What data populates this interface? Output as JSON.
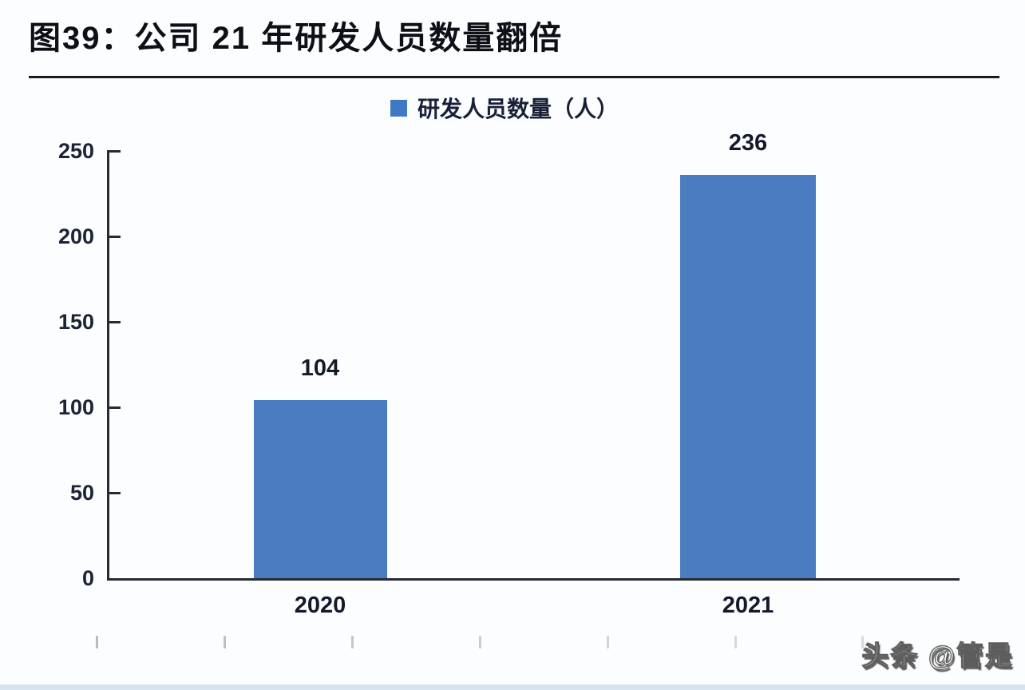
{
  "figure": {
    "title": "图39：公司 21 年研发人员数量翻倍",
    "watermark": "头条 @管是"
  },
  "chart_data": {
    "type": "bar",
    "title": "图39：公司 21 年研发人员数量翻倍",
    "categories": [
      "2020",
      "2021"
    ],
    "series": [
      {
        "name": "研发人员数量（人）",
        "values": [
          104,
          236
        ]
      }
    ],
    "data_labels": [
      "104",
      "236"
    ],
    "xlabel": "",
    "ylabel": "",
    "ylim": [
      0,
      250
    ],
    "yticks": [
      0,
      50,
      100,
      150,
      200,
      250
    ],
    "grid": false,
    "legend_position": "top-center",
    "bar_color": "#4a7cbf",
    "legend_swatch_color": "#3f78c4",
    "axis_color": "#262b34",
    "text_color": "#1c2336"
  }
}
